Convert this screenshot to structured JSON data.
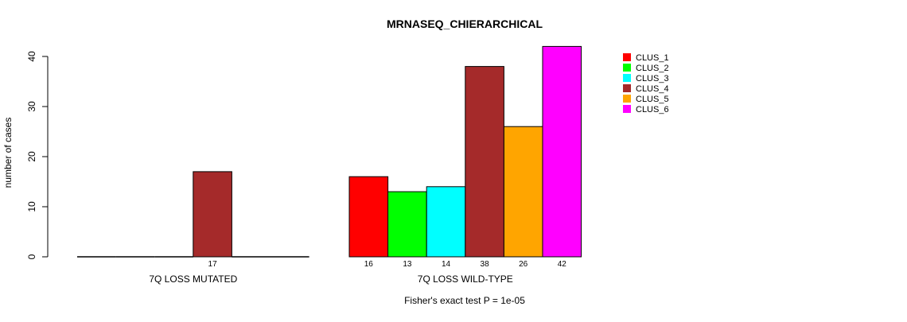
{
  "chart_data": {
    "type": "bar",
    "title": "MRNASEQ_CHIERARCHICAL",
    "ylabel": "number of cases",
    "xlabel": "",
    "footnote": "Fisher's exact test P = 1e-05",
    "ylim": [
      0,
      42
    ],
    "yticks": [
      "0",
      "10",
      "20",
      "30",
      "40"
    ],
    "legend_position": "top-right",
    "series": [
      {
        "name": "CLUS_1",
        "color": "#ff0000"
      },
      {
        "name": "CLUS_2",
        "color": "#00ff00"
      },
      {
        "name": "CLUS_3",
        "color": "#00ffff"
      },
      {
        "name": "CLUS_4",
        "color": "#a52a2a"
      },
      {
        "name": "CLUS_5",
        "color": "#ffa500"
      },
      {
        "name": "CLUS_6",
        "color": "#ff00ff"
      }
    ],
    "groups": [
      {
        "name": "7Q LOSS MUTATED",
        "values": [
          0,
          0,
          0,
          17,
          0,
          0
        ],
        "labels": [
          "",
          "",
          "",
          "17",
          "",
          ""
        ]
      },
      {
        "name": "7Q LOSS WILD-TYPE",
        "values": [
          16,
          13,
          14,
          38,
          26,
          42
        ],
        "labels": [
          "16",
          "13",
          "14",
          "38",
          "26",
          "42"
        ]
      }
    ]
  }
}
